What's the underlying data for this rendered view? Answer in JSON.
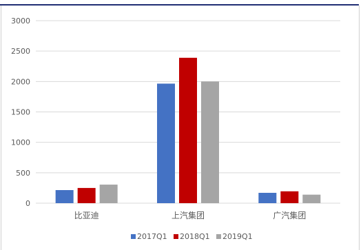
{
  "chart_data": {
    "type": "bar",
    "categories": [
      "比亚迪",
      "上汽集团",
      "广汽集团"
    ],
    "series": [
      {
        "name": "2017Q1",
        "values": [
          215,
          1965,
          170
        ],
        "color": "#4472C4"
      },
      {
        "name": "2018Q1",
        "values": [
          250,
          2390,
          195
        ],
        "color": "#C00000"
      },
      {
        "name": "2019Q1",
        "values": [
          305,
          2000,
          140
        ],
        "color": "#A5A5A5"
      }
    ],
    "title": "",
    "xlabel": "",
    "ylabel": "",
    "ylim": [
      0,
      3000
    ],
    "yticks": [
      "0",
      "500",
      "1000",
      "1500",
      "2000",
      "2500",
      "3000"
    ],
    "grid": true,
    "legend_position": "bottom"
  }
}
